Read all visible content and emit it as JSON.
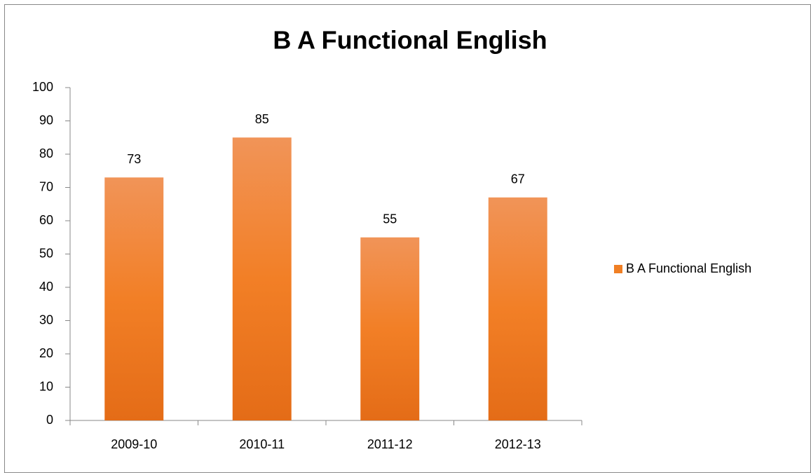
{
  "chart_data": {
    "type": "bar",
    "title": "B A Functional English",
    "categories": [
      "2009-10",
      "2010-11",
      "2011-12",
      "2012-13"
    ],
    "series": [
      {
        "name": "B A Functional English",
        "color": "#f07f24",
        "values": [
          73,
          85,
          55,
          67
        ]
      }
    ],
    "ylim": [
      0,
      100
    ],
    "yticks": [
      0,
      10,
      20,
      30,
      40,
      50,
      60,
      70,
      80,
      90,
      100
    ],
    "grid": false,
    "legend": "right"
  }
}
